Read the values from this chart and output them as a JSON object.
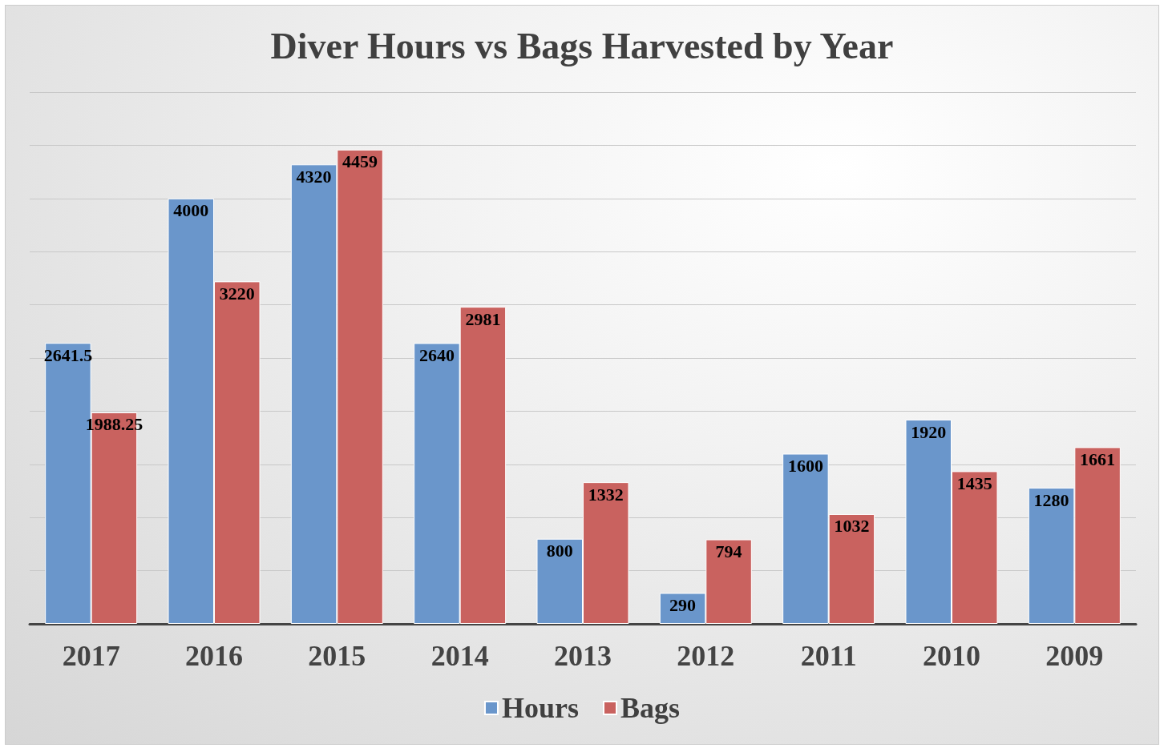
{
  "chart_data": {
    "type": "bar",
    "title": "Diver Hours vs Bags Harvested by Year",
    "categories": [
      "2017",
      "2016",
      "2015",
      "2014",
      "2013",
      "2012",
      "2011",
      "2010",
      "2009"
    ],
    "series": [
      {
        "name": "Hours",
        "color": "#6a96cb",
        "values": [
          2641.5,
          4000,
          4320,
          2640,
          800,
          290,
          1600,
          1920,
          1280
        ]
      },
      {
        "name": "Bags",
        "color": "#c9625f",
        "values": [
          1988.25,
          3220,
          4459,
          2981,
          1332,
          794,
          1032,
          1435,
          1661
        ]
      }
    ],
    "ylim": [
      0,
      5000
    ],
    "yticks": [
      {
        "value": 0,
        "label": null
      },
      {
        "value": 500,
        "label": null
      },
      {
        "value": 1000,
        "label": null
      },
      {
        "value": 1500,
        "label": null
      },
      {
        "value": 2000,
        "label": null
      },
      {
        "value": 2500,
        "label": null
      },
      {
        "value": 3000,
        "label": null
      },
      {
        "value": 3500,
        "label": null
      },
      {
        "value": 4000,
        "label": null
      },
      {
        "value": 4500,
        "label": null
      },
      {
        "value": 5000,
        "label": null
      }
    ],
    "grid": "y",
    "legend": "bottom",
    "data_labels": true,
    "tick_labels": "x"
  }
}
